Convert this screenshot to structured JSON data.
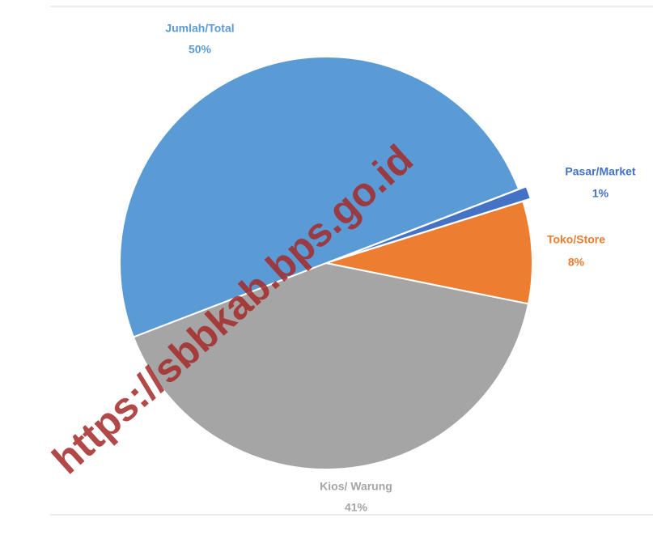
{
  "chart_data": {
    "type": "pie",
    "categories": [
      "Pasar/Market",
      "Toko/Store",
      "Kios/ Warung",
      "Jumlah/Total"
    ],
    "values": [
      1,
      8,
      41,
      50
    ],
    "value_labels": [
      "1%",
      "8%",
      "41%",
      "50%"
    ],
    "colors": [
      "#4472c4",
      "#ed7d31",
      "#a5a5a5",
      "#5b9bd5"
    ],
    "watermark": "https://sbbkab.bps.go.id"
  }
}
